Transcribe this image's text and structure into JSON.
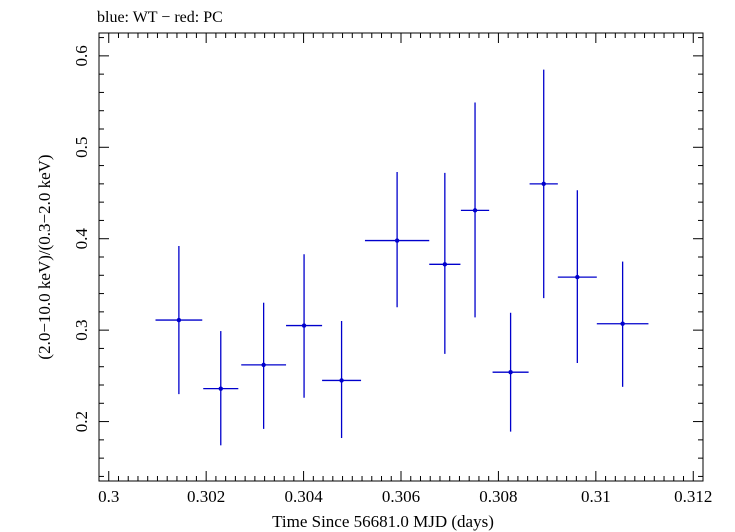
{
  "chart_data": {
    "type": "scatter",
    "title": "blue: WT − red: PC",
    "xlabel": "Time Since 56681.0 MJD (days)",
    "ylabel": "(2.0−10.0 keV)/(0.3−2.0 keV)",
    "xlim": [
      0.2998,
      0.3122
    ],
    "ylim": [
      0.135,
      0.625
    ],
    "xticks": [
      {
        "value": 0.3,
        "label": "0.3"
      },
      {
        "value": 0.302,
        "label": "0.302"
      },
      {
        "value": 0.304,
        "label": "0.304"
      },
      {
        "value": 0.306,
        "label": "0.306"
      },
      {
        "value": 0.308,
        "label": "0.308"
      },
      {
        "value": 0.31,
        "label": "0.31"
      },
      {
        "value": 0.312,
        "label": "0.312"
      }
    ],
    "yticks": [
      {
        "value": 0.2,
        "label": "0.2"
      },
      {
        "value": 0.3,
        "label": "0.3"
      },
      {
        "value": 0.4,
        "label": "0.4"
      },
      {
        "value": 0.5,
        "label": "0.5"
      },
      {
        "value": 0.6,
        "label": "0.6"
      }
    ],
    "xminor": 0.0002,
    "yminor": 0.02,
    "grid": false,
    "series": [
      {
        "color": "#0000cc",
        "points": [
          {
            "x": 0.30144,
            "y": 0.311,
            "xerr": 0.00048,
            "yerr_lo": 0.081,
            "yerr_hi": 0.081
          },
          {
            "x": 0.3023,
            "y": 0.236,
            "xerr": 0.00036,
            "yerr_lo": 0.062,
            "yerr_hi": 0.063
          },
          {
            "x": 0.30318,
            "y": 0.262,
            "xerr": 0.00046,
            "yerr_lo": 0.07,
            "yerr_hi": 0.068
          },
          {
            "x": 0.30401,
            "y": 0.305,
            "xerr": 0.00037,
            "yerr_lo": 0.079,
            "yerr_hi": 0.078
          },
          {
            "x": 0.30478,
            "y": 0.245,
            "xerr": 0.0004,
            "yerr_lo": 0.063,
            "yerr_hi": 0.065
          },
          {
            "x": 0.30592,
            "y": 0.398,
            "xerr": 0.00066,
            "yerr_lo": 0.073,
            "yerr_hi": 0.075
          },
          {
            "x": 0.3069,
            "y": 0.372,
            "xerr": 0.00032,
            "yerr_lo": 0.098,
            "yerr_hi": 0.1
          },
          {
            "x": 0.30752,
            "y": 0.431,
            "xerr": 0.00029,
            "yerr_lo": 0.117,
            "yerr_hi": 0.118
          },
          {
            "x": 0.30825,
            "y": 0.254,
            "xerr": 0.00037,
            "yerr_lo": 0.065,
            "yerr_hi": 0.065
          },
          {
            "x": 0.30893,
            "y": 0.46,
            "xerr": 0.00029,
            "yerr_lo": 0.125,
            "yerr_hi": 0.125
          },
          {
            "x": 0.30962,
            "y": 0.358,
            "xerr": 0.0004,
            "yerr_lo": 0.094,
            "yerr_hi": 0.095
          },
          {
            "x": 0.31055,
            "y": 0.307,
            "xerr": 0.00053,
            "yerr_lo": 0.069,
            "yerr_hi": 0.068
          }
        ]
      }
    ]
  }
}
